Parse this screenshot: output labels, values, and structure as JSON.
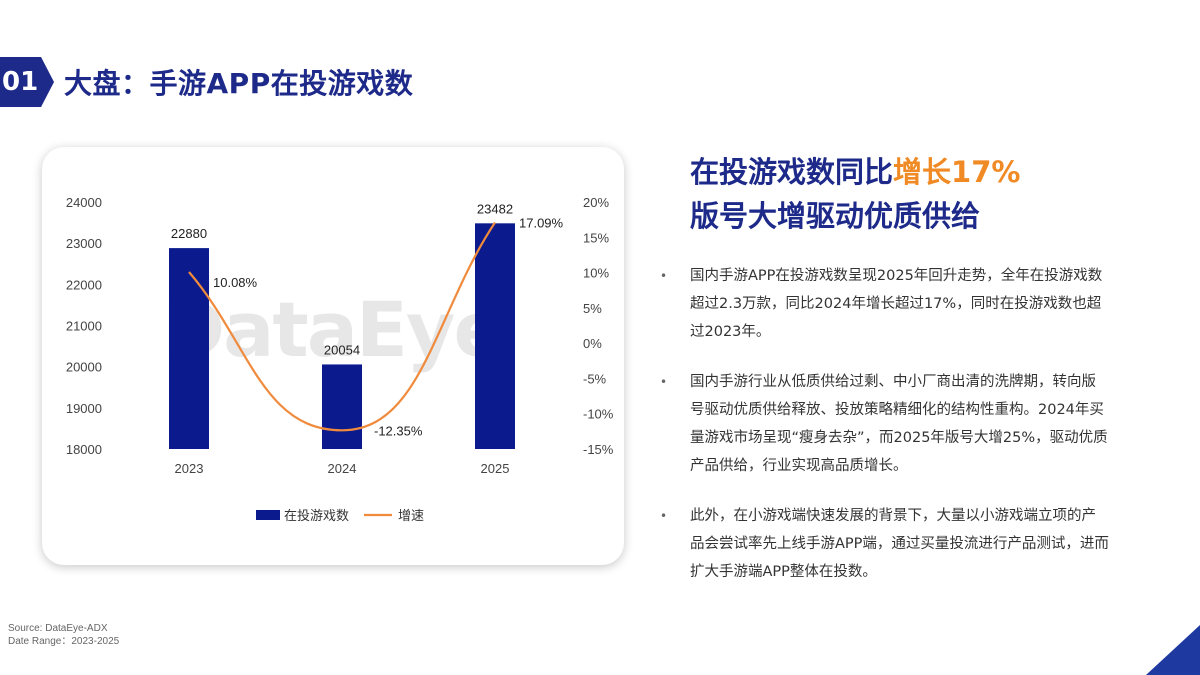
{
  "header": {
    "section_number": "01",
    "title": "大盘：手游APP在投游戏数"
  },
  "watermark": "DataEye",
  "chart_data": {
    "type": "bar+line",
    "categories": [
      "2023",
      "2024",
      "2025"
    ],
    "series": [
      {
        "name": "在投游戏数",
        "type": "bar",
        "axis": "left",
        "values": [
          22880,
          20054,
          23482
        ],
        "labels": [
          "22880",
          "20054",
          "23482"
        ],
        "color": "#0b1a8c"
      },
      {
        "name": "增速",
        "type": "line",
        "axis": "right",
        "values": [
          10.08,
          -12.35,
          17.09
        ],
        "labels": [
          "10.08%",
          "-12.35%",
          "17.09%"
        ],
        "color": "#f08a3c"
      }
    ],
    "y_left": {
      "min": 18000,
      "max": 24000,
      "ticks": [
        "24000",
        "23000",
        "22000",
        "21000",
        "20000",
        "19000",
        "18000"
      ]
    },
    "y_right": {
      "min": -15,
      "max": 20,
      "ticks": [
        "20%",
        "15%",
        "10%",
        "5%",
        "0%",
        "-5%",
        "-10%",
        "-15%"
      ]
    },
    "legend_position": "bottom",
    "grid": false
  },
  "headline": {
    "line1_prefix": "在投游戏数同比",
    "line1_accent": "增长17%",
    "line2": "版号大增驱动优质供给"
  },
  "bullets": [
    "国内手游APP在投游戏数呈现2025年回升走势，全年在投游戏数超过2.3万款，同比2024年增长超过17%，同时在投游戏数也超过2023年。",
    "国内手游行业从低质供给过剩、中小厂商出清的洗牌期，转向版号驱动优质供给释放、投放策略精细化的结构性重构。2024年买量游戏市场呈现“瘦身去杂”，而2025年版号大增25%，驱动优质产品供给，行业实现高品质增长。",
    "此外，在小游戏端快速发展的背景下，大量以小游戏端立项的产品会尝试率先上线手游APP端，通过买量投流进行产品测试，进而扩大手游端APP整体在投数。"
  ],
  "source": {
    "line1": "Source: DataEye-ADX",
    "line2": "Date Range：2023-2025"
  },
  "colors": {
    "brand": "#1e2a8a",
    "accent": "#f08a24",
    "bar": "#0b1a8c",
    "line": "#f08a3c"
  }
}
